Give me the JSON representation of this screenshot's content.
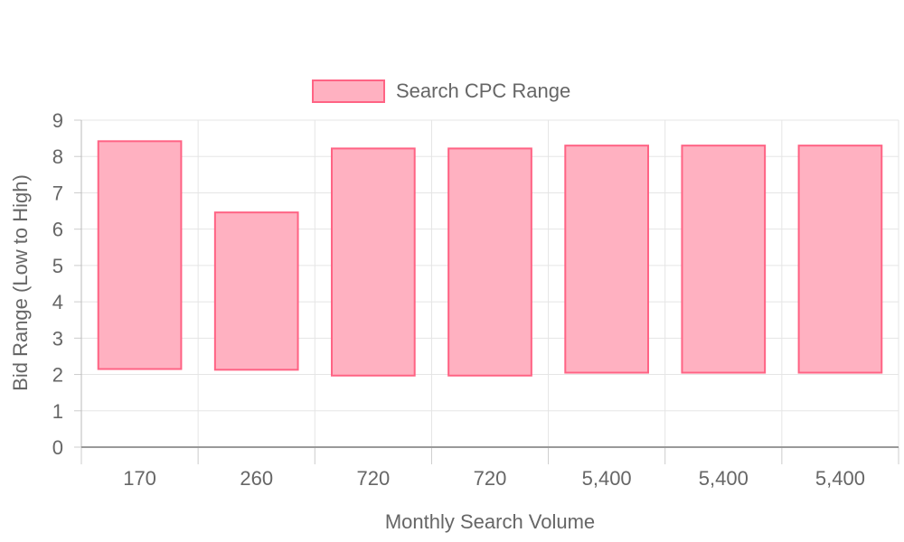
{
  "chart_data": {
    "type": "bar",
    "subtype": "floating-range",
    "categories": [
      "170",
      "260",
      "720",
      "720",
      "5,400",
      "5,400",
      "5,400"
    ],
    "series": [
      {
        "name": "Search CPC Range",
        "ranges": [
          [
            2.15,
            8.42
          ],
          [
            2.13,
            6.46
          ],
          [
            1.97,
            8.22
          ],
          [
            1.97,
            8.22
          ],
          [
            2.05,
            8.3
          ],
          [
            2.05,
            8.3
          ],
          [
            2.05,
            8.3
          ]
        ],
        "fill": "#ffb1c1",
        "border": "#ff6384"
      }
    ],
    "title": "",
    "xlabel": "Monthly Search Volume",
    "ylabel": "Bid Range (Low to High)",
    "ylim": [
      0,
      9
    ],
    "yticks": [
      0,
      1,
      2,
      3,
      4,
      5,
      6,
      7,
      8,
      9
    ],
    "grid": true,
    "legend_position": "top"
  }
}
